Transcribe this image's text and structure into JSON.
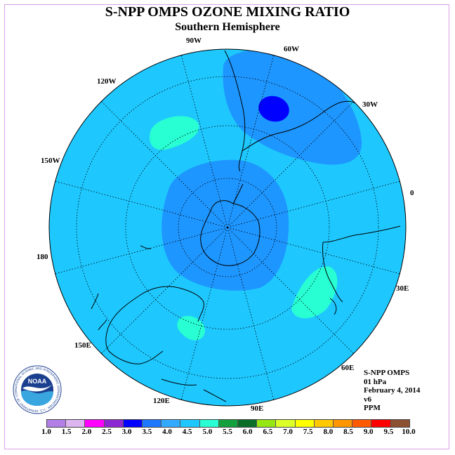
{
  "title": "S-NPP OMPS OZONE MIXING RATIO",
  "subtitle": "Southern Hemisphere",
  "longitude_labels": {
    "lon_90w": "90W",
    "lon_60w": "60W",
    "lon_120w": "120W",
    "lon_30w": "30W",
    "lon_150w": "150W",
    "lon_0": "0",
    "lon_180": "180",
    "lon_30e": "30E",
    "lon_150e": "150E",
    "lon_60e": "60E",
    "lon_120e": "120E",
    "lon_90e": "90E"
  },
  "info": {
    "instrument": "S-NPP OMPS",
    "level": "01 hPa",
    "date": "February 4, 2014",
    "version": "v6",
    "units": "PPM"
  },
  "logo": {
    "text": "NOAA",
    "ring_text": "NATIONAL OCEANIC AND ATMOSPHERIC ADMINISTRATION · U.S. DEPARTMENT OF COMMERCE"
  },
  "colorbar": {
    "ticks": [
      "1.0",
      "1.5",
      "2.0",
      "2.5",
      "3.0",
      "3.5",
      "4.0",
      "4.5",
      "5.0",
      "5.5",
      "6.0",
      "6.5",
      "7.0",
      "7.5",
      "8.0",
      "8.5",
      "9.0",
      "9.5",
      "10.0"
    ],
    "colors": [
      "#b27fe6",
      "#dcb4f0",
      "#ff00ff",
      "#8c28d2",
      "#0000ff",
      "#1e78ff",
      "#32aaff",
      "#1ec8ff",
      "#28ffd2",
      "#14a03c",
      "#0a6e28",
      "#96e614",
      "#dcff28",
      "#ffff00",
      "#ffc800",
      "#ff9600",
      "#ff5a00",
      "#ff0000",
      "#8c5032"
    ]
  },
  "map_colors": {
    "background": "#1ec8ff",
    "level_3_5": "#1e96ff",
    "level_3_0": "#0000ff",
    "level_4_5": "#28ffd2",
    "coast": "#000000"
  }
}
